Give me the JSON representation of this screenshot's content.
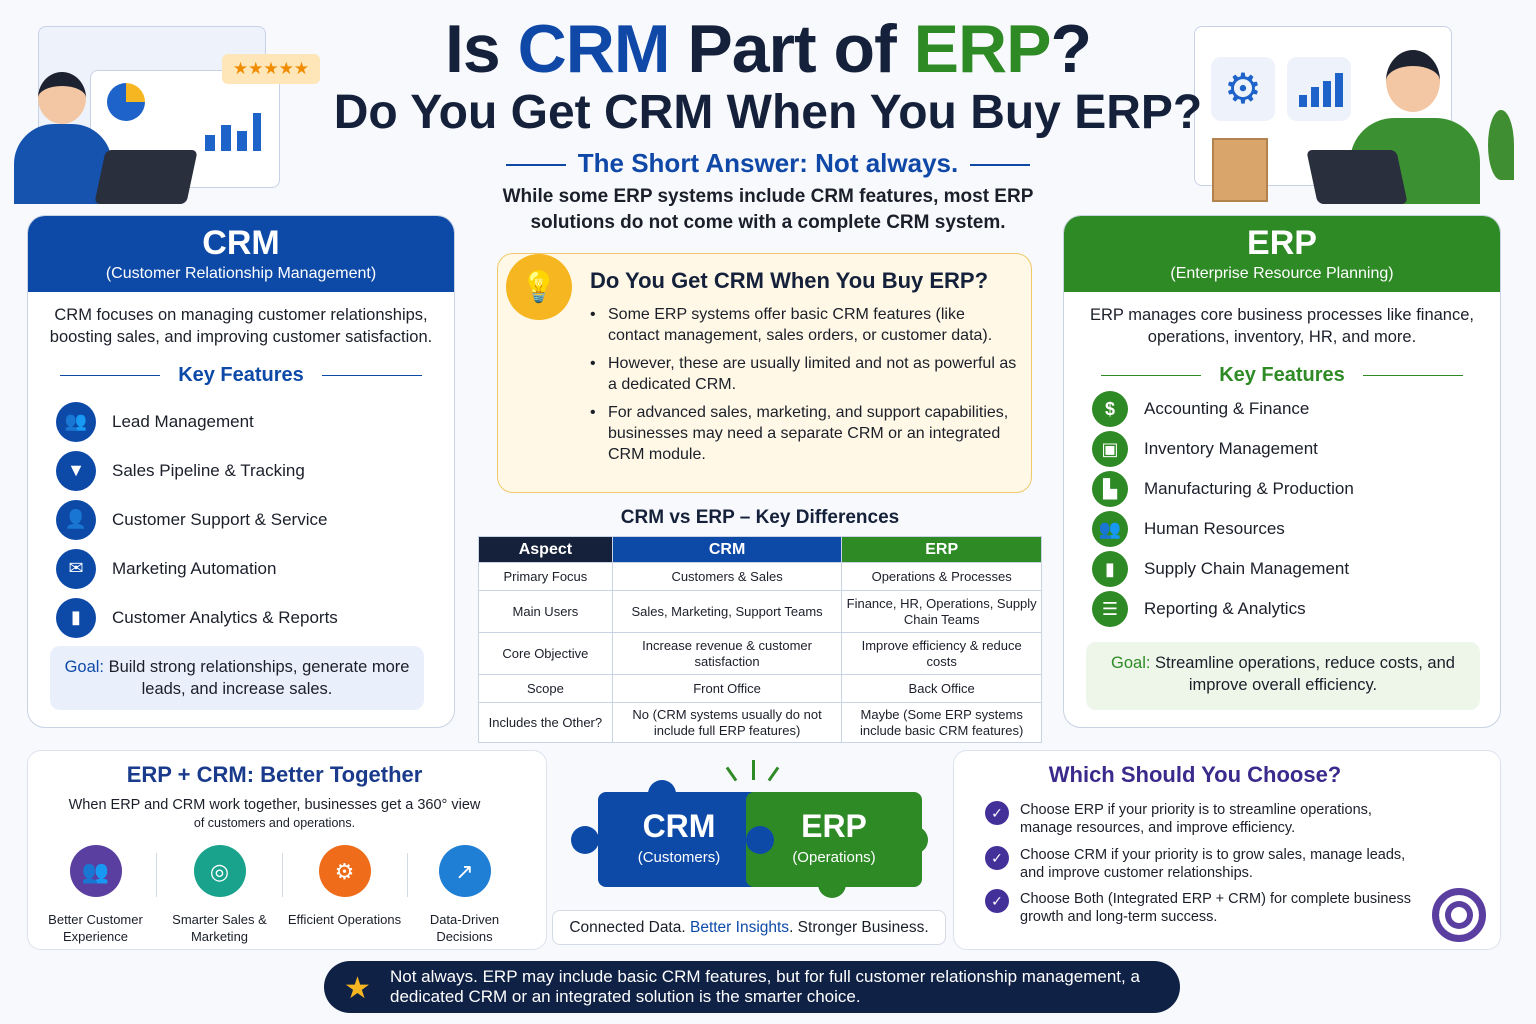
{
  "header": {
    "title_part1": "Is ",
    "title_crm": "CRM",
    "title_part2": " Part of ",
    "title_erp": "ERP",
    "title_q": "?",
    "subtitle": "Do You Get CRM When You Buy ERP?",
    "short_answer": "The Short Answer: Not always.",
    "intro": "While some ERP systems include CRM features, most ERP solutions do not come with a complete CRM system."
  },
  "illustration": {
    "rating_stars": "★★★★★"
  },
  "crm": {
    "title": "CRM",
    "subtitle": "(Customer Relationship Management)",
    "description": "CRM focuses on managing customer relationships, boosting sales, and improving customer satisfaction.",
    "key_features_label": "Key Features",
    "features": [
      {
        "label": "Lead Management",
        "icon": "users-icon"
      },
      {
        "label": "Sales Pipeline & Tracking",
        "icon": "funnel-icon"
      },
      {
        "label": "Customer Support & Service",
        "icon": "person-icon"
      },
      {
        "label": "Marketing Automation",
        "icon": "envelope-icon"
      },
      {
        "label": "Customer Analytics & Reports",
        "icon": "bar-chart-icon"
      }
    ],
    "goal_label": "Goal:",
    "goal_text": " Build strong relationships, generate more leads, and increase sales."
  },
  "erp": {
    "title": "ERP",
    "subtitle": "(Enterprise Resource Planning)",
    "description": "ERP manages core business processes like finance, operations, inventory, HR, and more.",
    "key_features_label": "Key Features",
    "features": [
      {
        "label": "Accounting & Finance",
        "icon": "dollar-icon"
      },
      {
        "label": "Inventory Management",
        "icon": "box-icon"
      },
      {
        "label": "Manufacturing & Production",
        "icon": "factory-icon"
      },
      {
        "label": "Human Resources",
        "icon": "users-icon"
      },
      {
        "label": "Supply Chain Management",
        "icon": "bar-chart-icon"
      },
      {
        "label": "Reporting & Analytics",
        "icon": "report-icon"
      }
    ],
    "goal_label": "Goal:",
    "goal_text": " Streamline operations, reduce costs, and improve overall efficiency."
  },
  "question_box": {
    "title": "Do You Get CRM When You Buy ERP?",
    "bullets": [
      "Some ERP systems offer basic CRM features (like contact management, sales orders, or customer data).",
      "However, these are usually limited and not as powerful as a dedicated CRM.",
      "For advanced sales, marketing, and support capabilities, businesses may need a separate CRM or an integrated CRM module."
    ]
  },
  "comparison": {
    "title": "CRM vs ERP – Key Differences",
    "headers": [
      "Aspect",
      "CRM",
      "ERP"
    ],
    "rows": [
      [
        "Primary Focus",
        "Customers & Sales",
        "Operations & Processes"
      ],
      [
        "Main Users",
        "Sales, Marketing, Support Teams",
        "Finance, HR, Operations, Supply Chain Teams"
      ],
      [
        "Core Objective",
        "Increase revenue & customer satisfaction",
        "Improve efficiency & reduce costs"
      ],
      [
        "Scope",
        "Front Office",
        "Back Office"
      ],
      [
        "Includes the Other?",
        "No (CRM systems usually do not include full ERP features)",
        "Maybe (Some ERP systems include basic CRM features)"
      ]
    ]
  },
  "together": {
    "title": "ERP + CRM: Better Together",
    "line1": "When ERP and CRM work together, businesses get a 360° view",
    "line2": "of customers and operations.",
    "benefits": [
      {
        "label": "Better Customer Experience",
        "icon": "users-icon",
        "color": "#5b3fa0"
      },
      {
        "label": "Smarter Sales & Marketing",
        "icon": "target-icon",
        "color": "#1aa38c"
      },
      {
        "label": "Efficient Operations",
        "icon": "gear-icon",
        "color": "#ef6c1a"
      },
      {
        "label": "Data-Driven Decisions",
        "icon": "chart-up-icon",
        "color": "#1f7fd4"
      }
    ]
  },
  "puzzle": {
    "crm_title": "CRM",
    "crm_sub": "(Customers)",
    "erp_title": "ERP",
    "erp_sub": "(Operations)",
    "tagline_1": "Connected Data. ",
    "tagline_2": "Better Insights",
    "tagline_3": ". Stronger Business."
  },
  "choose": {
    "title": "Which Should You Choose?",
    "items": [
      "Choose ERP if your priority is to streamline operations, manage resources, and improve efficiency.",
      "Choose CRM if your priority is to grow sales, manage leads, and improve customer relationships.",
      "Choose Both (Integrated ERP + CRM) for complete business growth and long-term success."
    ]
  },
  "banner": {
    "text": "Not always. ERP may include basic CRM features, but for full customer relationship management, a dedicated CRM or an integrated solution is the smarter choice."
  },
  "colors": {
    "crm_blue": "#0d4aa8",
    "erp_green": "#2e8a25",
    "navy": "#15213a"
  }
}
